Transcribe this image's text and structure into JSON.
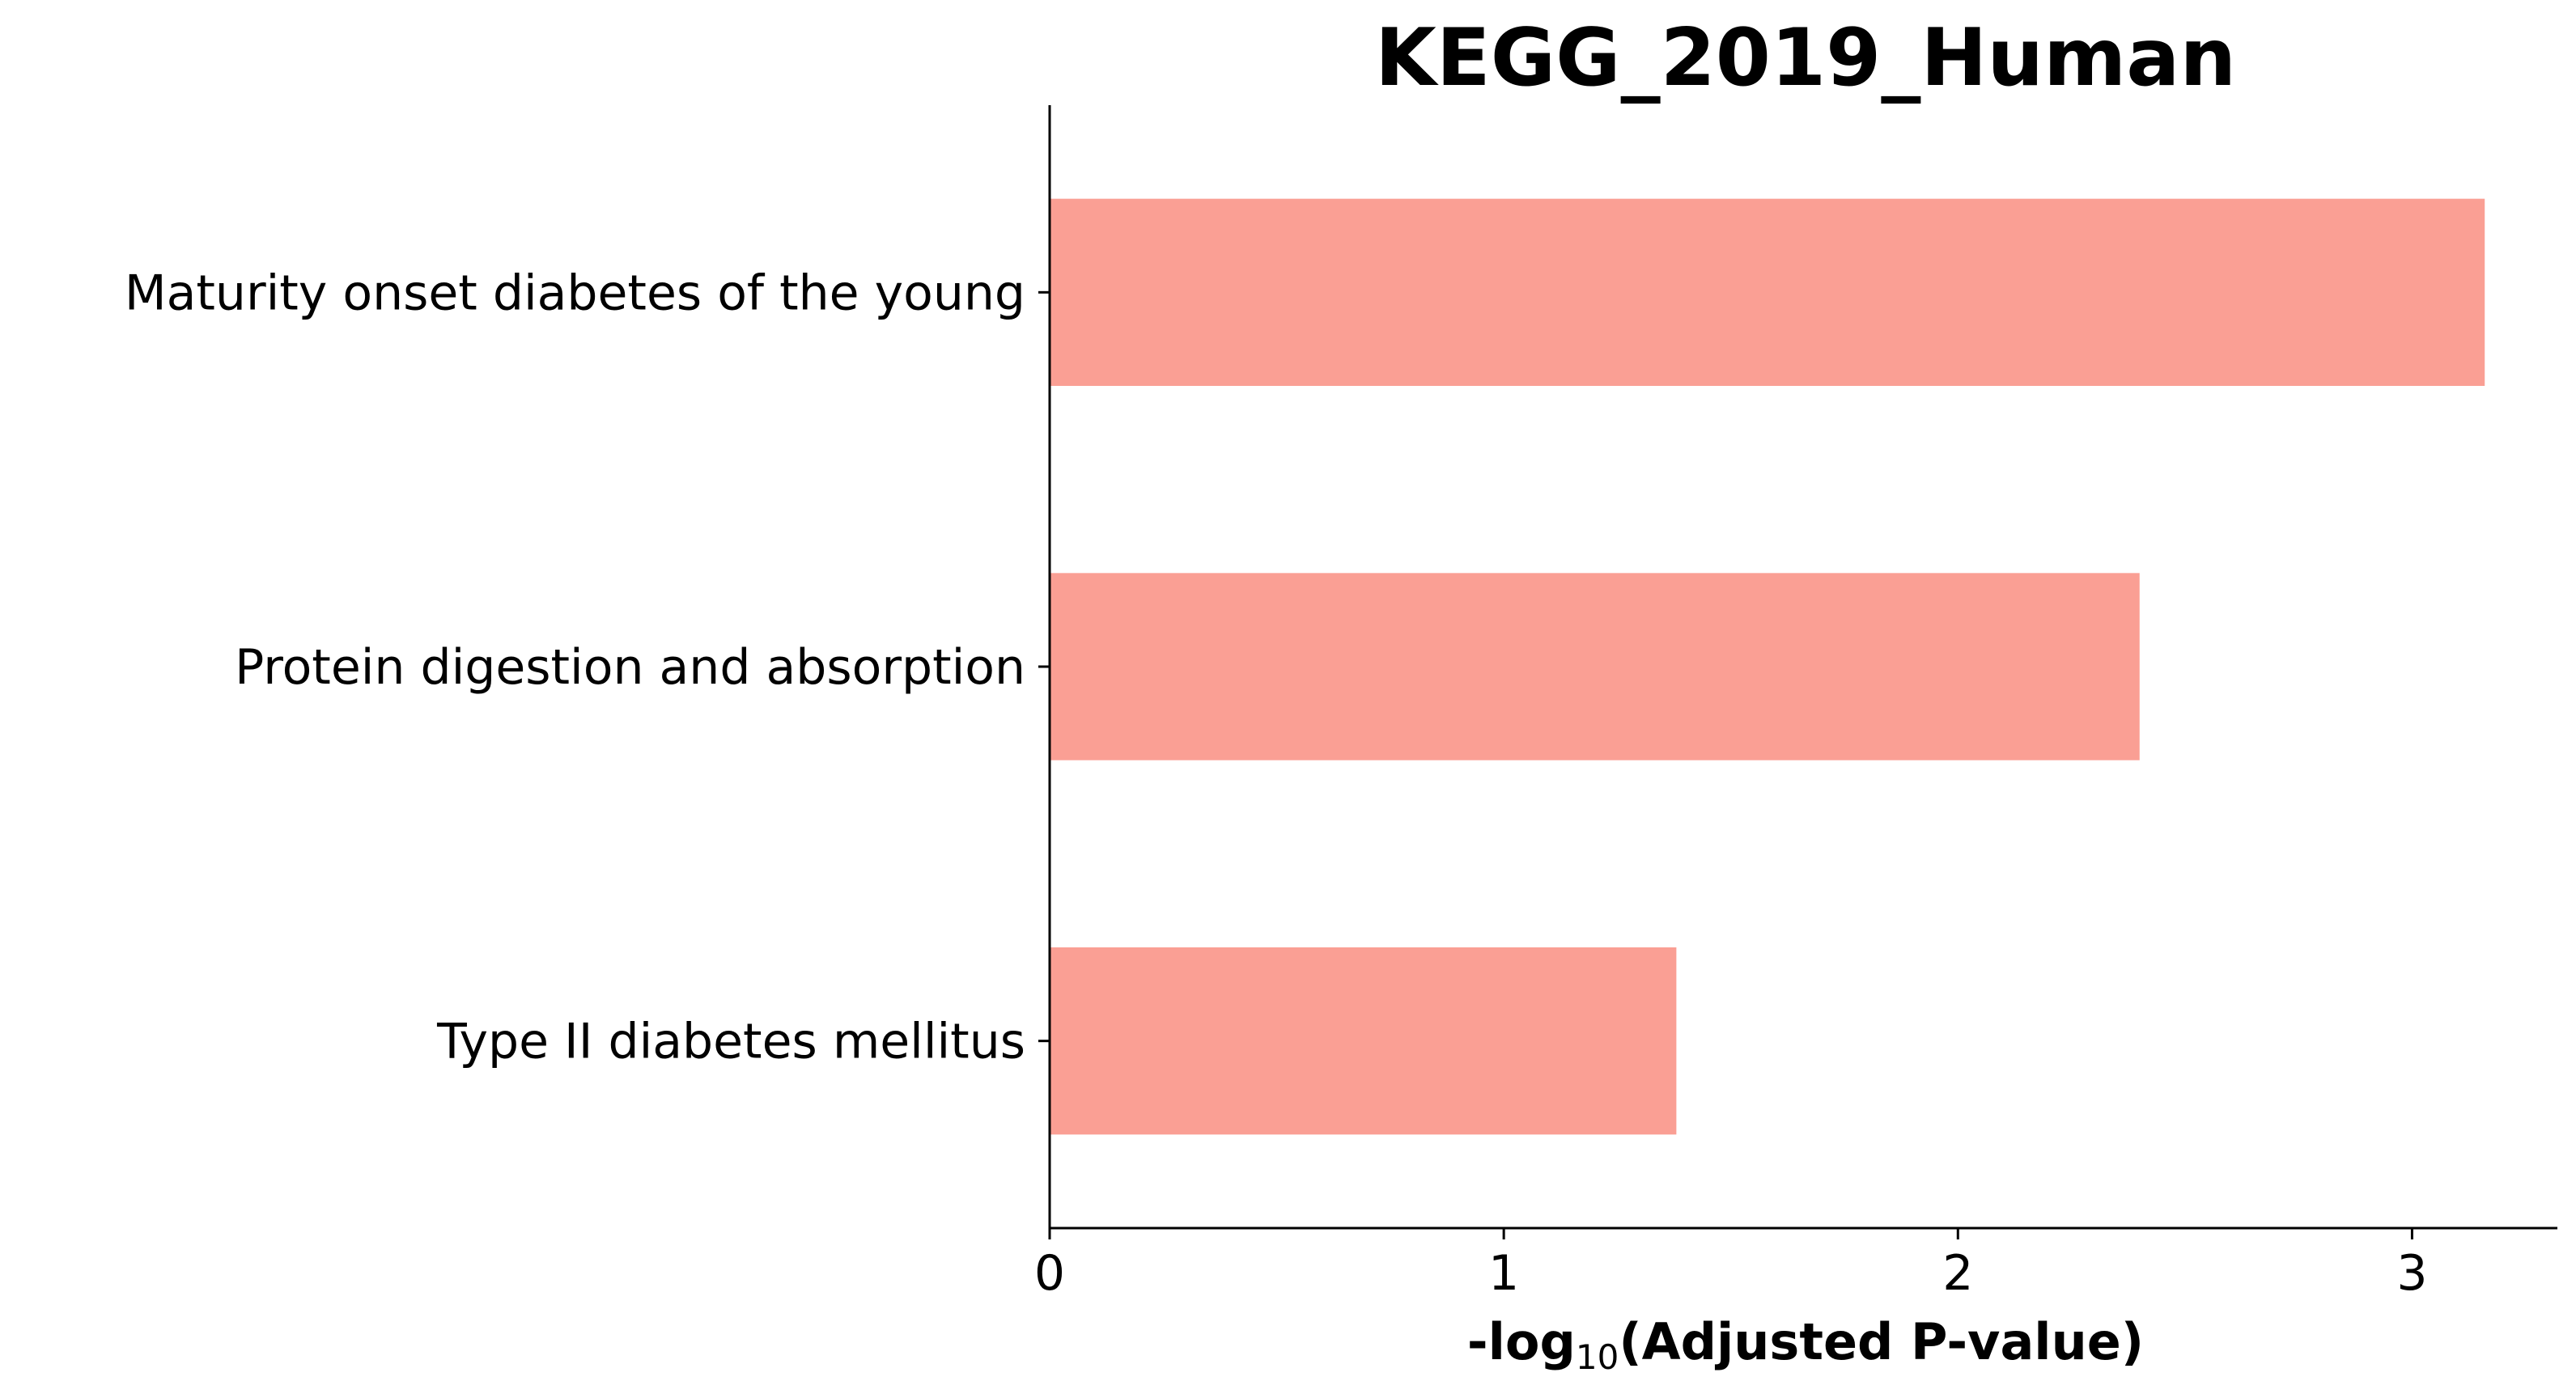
{
  "chart_data": {
    "type": "bar",
    "orientation": "horizontal",
    "title": "KEGG_2019_Human",
    "xlabel": {
      "prefix": "-log",
      "subscript": "10",
      "suffix": "(Adjusted P-value)"
    },
    "ylabel": "",
    "categories": [
      "Maturity onset diabetes of the young",
      "Protein digestion and absorption",
      "Type II diabetes mellitus"
    ],
    "values": [
      3.16,
      2.4,
      1.38
    ],
    "xlim": [
      0,
      3.32
    ],
    "xticks": [
      0,
      1,
      2,
      3
    ],
    "bar_color": "#fa9f94",
    "grid": false
  }
}
